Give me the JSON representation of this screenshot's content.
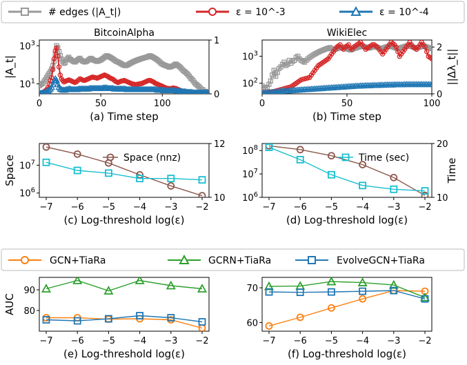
{
  "legend_top": [
    {
      "name": "# edges (|A_t|)",
      "color": "#999999",
      "marker": "square"
    },
    {
      "name": "ε = 10^-3",
      "color": "#d62728",
      "marker": "circle"
    },
    {
      "name": "ε = 10^-4",
      "color": "#1f77b4",
      "marker": "triangle"
    }
  ],
  "legend_bottom": [
    {
      "name": "GCN+TiaRa",
      "color": "#ff7f0e",
      "marker": "circle"
    },
    {
      "name": "GCRN+TiaRa",
      "color": "#2ca02c",
      "marker": "triangle"
    },
    {
      "name": "EvolveGCN+TiaRa",
      "color": "#1f77b4",
      "marker": "square"
    }
  ],
  "chart_data": [
    {
      "id": "a",
      "type": "line",
      "title": "BitcoinAlpha",
      "caption": "(a) Time step",
      "xlabel": "Time step",
      "ylabel": "|A_t|",
      "y_scale": "log",
      "ylim": [
        3,
        2000
      ],
      "xlim": [
        0,
        138
      ],
      "x_ticks": [
        0,
        50,
        100
      ],
      "y_ticks_left": [
        "10^1",
        "10^3"
      ],
      "y2lim": [
        0,
        1
      ],
      "y2_ticks": [
        "0",
        "1"
      ],
      "y2label": "",
      "series": [
        {
          "name": "# edges (|A_t|)",
          "axis": "left",
          "x_start": 0,
          "x_step": 1,
          "values": [
            8,
            9,
            10,
            11,
            14,
            17,
            22,
            28,
            35,
            45,
            60,
            90,
            150,
            350,
            1000,
            800,
            500,
            300,
            200,
            150,
            120,
            130,
            180,
            220,
            250,
            200,
            180,
            160,
            150,
            140,
            160,
            180,
            200,
            220,
            180,
            160,
            150,
            140,
            150,
            160,
            180,
            200,
            220,
            200,
            180,
            170,
            160,
            150,
            160,
            170,
            180,
            200,
            220,
            250,
            280,
            300,
            280,
            260,
            240,
            220,
            200,
            180,
            160,
            150,
            140,
            130,
            120,
            110,
            100,
            95,
            90,
            95,
            100,
            110,
            120,
            130,
            140,
            150,
            160,
            170,
            180,
            190,
            200,
            210,
            220,
            230,
            240,
            250,
            260,
            280,
            300,
            280,
            260,
            240,
            220,
            200,
            180,
            160,
            140,
            120,
            110,
            100,
            95,
            90,
            85,
            80,
            75,
            80,
            85,
            90,
            100,
            110,
            100,
            90,
            80,
            70,
            60,
            50,
            45,
            40,
            35,
            30,
            25,
            20,
            18,
            15,
            12,
            10,
            9,
            8,
            7,
            6,
            5,
            5,
            4,
            4,
            4,
            4
          ]
        },
        {
          "name": "ε = 10^-3",
          "axis": "right",
          "x_start": 0,
          "x_step": 1,
          "values": [
            0.01,
            0.015,
            0.02,
            0.03,
            0.04,
            0.06,
            0.08,
            0.12,
            0.18,
            0.25,
            0.3,
            0.45,
            0.65,
            0.8,
            0.85,
            0.7,
            0.5,
            0.35,
            0.28,
            0.25,
            0.22,
            0.23,
            0.24,
            0.25,
            0.26,
            0.25,
            0.24,
            0.23,
            0.22,
            0.21,
            0.22,
            0.24,
            0.26,
            0.28,
            0.27,
            0.26,
            0.25,
            0.25,
            0.26,
            0.27,
            0.28,
            0.29,
            0.3,
            0.31,
            0.31,
            0.3,
            0.3,
            0.29,
            0.3,
            0.31,
            0.32,
            0.33,
            0.34,
            0.35,
            0.34,
            0.33,
            0.32,
            0.3,
            0.29,
            0.28,
            0.27,
            0.25,
            0.23,
            0.22,
            0.21,
            0.22,
            0.23,
            0.24,
            0.24,
            0.25,
            0.24,
            0.23,
            0.22,
            0.21,
            0.2,
            0.19,
            0.18,
            0.18,
            0.17,
            0.17,
            0.18,
            0.18,
            0.19,
            0.19,
            0.2,
            0.21,
            0.22,
            0.23,
            0.24,
            0.25,
            0.25,
            0.24,
            0.23,
            0.22,
            0.2,
            0.19,
            0.18,
            0.17,
            0.16,
            0.15,
            0.14,
            0.13,
            0.12,
            0.11,
            0.1,
            0.1,
            0.09,
            0.1,
            0.1,
            0.11,
            0.1,
            0.1,
            0.09,
            0.08,
            0.07,
            0.06,
            0.05,
            0.05,
            0.04,
            0.04,
            0.04,
            0.03,
            0.03,
            0.03,
            0.02,
            0.02,
            0.02,
            0.02,
            0.02,
            0.02,
            0.02,
            0.02,
            0.02,
            0.02,
            0.02,
            0.02,
            0.02,
            0.02
          ]
        },
        {
          "name": "ε = 10^-4",
          "axis": "right",
          "x_start": 0,
          "x_step": 1,
          "values": [
            0.01,
            0.01,
            0.01,
            0.015,
            0.02,
            0.03,
            0.04,
            0.05,
            0.07,
            0.09,
            0.12,
            0.17,
            0.24,
            0.28,
            0.25,
            0.18,
            0.12,
            0.09,
            0.08,
            0.07,
            0.07,
            0.07,
            0.08,
            0.08,
            0.09,
            0.09,
            0.08,
            0.08,
            0.08,
            0.08,
            0.08,
            0.08,
            0.09,
            0.09,
            0.09,
            0.09,
            0.09,
            0.09,
            0.09,
            0.09,
            0.09,
            0.1,
            0.1,
            0.1,
            0.1,
            0.1,
            0.1,
            0.1,
            0.1,
            0.1,
            0.1,
            0.1,
            0.11,
            0.11,
            0.11,
            0.11,
            0.1,
            0.1,
            0.1,
            0.1,
            0.1,
            0.09,
            0.09,
            0.09,
            0.09,
            0.09,
            0.09,
            0.09,
            0.09,
            0.09,
            0.09,
            0.08,
            0.08,
            0.08,
            0.08,
            0.08,
            0.08,
            0.08,
            0.08,
            0.08,
            0.08,
            0.08,
            0.08,
            0.08,
            0.08,
            0.08,
            0.08,
            0.08,
            0.08,
            0.08,
            0.08,
            0.08,
            0.08,
            0.08,
            0.08,
            0.08,
            0.07,
            0.07,
            0.07,
            0.07,
            0.07,
            0.06,
            0.06,
            0.06,
            0.06,
            0.06,
            0.06,
            0.06,
            0.06,
            0.06,
            0.06,
            0.06,
            0.05,
            0.05,
            0.05,
            0.05,
            0.04,
            0.04,
            0.04,
            0.04,
            0.03,
            0.03,
            0.03,
            0.03,
            0.03,
            0.02,
            0.02,
            0.02,
            0.02,
            0.02,
            0.02,
            0.02,
            0.02,
            0.02,
            0.02,
            0.02,
            0.02,
            0.02
          ]
        }
      ]
    },
    {
      "id": "b",
      "type": "line",
      "title": "WikiElec",
      "caption": "(b) Time step",
      "xlabel": "Time step",
      "ylabel": "",
      "y_scale": "log",
      "ylim": [
        40,
        4000
      ],
      "xlim": [
        0,
        100
      ],
      "x_ticks": [
        0,
        50,
        100
      ],
      "y_ticks_left": [
        "10^2",
        "10^3"
      ],
      "y2lim": [
        0,
        2.3
      ],
      "y2_ticks": [
        "0",
        "2"
      ],
      "y2label": "||Δλ_t||",
      "series": [
        {
          "name": "# edges (|A_t|)",
          "axis": "left",
          "x_start": 0,
          "x_step": 1,
          "values": [
            80,
            70,
            65,
            70,
            90,
            120,
            200,
            300,
            180,
            250,
            350,
            400,
            500,
            600,
            450,
            500,
            700,
            550,
            650,
            700,
            900,
            1000,
            800,
            700,
            650,
            600,
            700,
            800,
            900,
            1000,
            1100,
            1200,
            1300,
            1400,
            1500,
            1600,
            1700,
            1800,
            1900,
            2000,
            2100,
            1900,
            1700,
            1800,
            1900,
            2000,
            2100,
            2200,
            2100,
            2000,
            1900,
            1800,
            1700,
            1800,
            1900,
            2000,
            2100,
            2200,
            2300,
            2400,
            2300,
            2200,
            2100,
            2000,
            2100,
            2200,
            2300,
            2200,
            2100,
            2000,
            1900,
            2000,
            2100,
            2200,
            2300,
            2400,
            2300,
            2200,
            2100,
            2000,
            1900,
            2000,
            2100,
            2200,
            2300,
            2400,
            2500,
            2400,
            2300,
            2200,
            2100,
            2000,
            2100,
            2200,
            2300,
            2400,
            2300,
            2200,
            2100,
            2000,
            1900
          ]
        },
        {
          "name": "ε = 10^-3",
          "axis": "right",
          "x_start": 0,
          "x_step": 1,
          "values": [
            0.05,
            0.05,
            0.05,
            0.06,
            0.07,
            0.08,
            0.09,
            0.1,
            0.12,
            0.14,
            0.16,
            0.18,
            0.2,
            0.22,
            0.24,
            0.26,
            0.28,
            0.3,
            0.35,
            0.4,
            0.45,
            0.5,
            0.55,
            0.6,
            0.62,
            0.64,
            0.66,
            0.68,
            0.7,
            0.8,
            0.9,
            1.0,
            1.1,
            1.2,
            1.25,
            1.3,
            1.35,
            1.4,
            1.45,
            1.5,
            1.6,
            1.7,
            1.8,
            1.9,
            2.0,
            2.05,
            2.1,
            1.95,
            1.9,
            2.0,
            2.05,
            2.1,
            1.95,
            1.9,
            2.0,
            2.05,
            2.1,
            2.15,
            2.2,
            2.1,
            2.0,
            1.9,
            1.95,
            2.0,
            2.05,
            2.1,
            2.1,
            2.05,
            2.0,
            1.9,
            1.8,
            1.7,
            1.8,
            1.9,
            2.0,
            2.1,
            2.2,
            2.15,
            2.1,
            2.0,
            1.8,
            1.6,
            1.7,
            1.8,
            1.9,
            2.0,
            2.1,
            2.2,
            2.1,
            2.0,
            1.95,
            1.9,
            2.0,
            2.1,
            2.2,
            2.1,
            2.0,
            1.8,
            1.6,
            1.55,
            1.5
          ]
        },
        {
          "name": "ε = 10^-4",
          "axis": "right",
          "x_start": 0,
          "x_step": 1,
          "values": [
            0.03,
            0.03,
            0.04,
            0.04,
            0.05,
            0.05,
            0.06,
            0.07,
            0.08,
            0.09,
            0.1,
            0.11,
            0.11,
            0.12,
            0.12,
            0.13,
            0.13,
            0.14,
            0.14,
            0.15,
            0.15,
            0.16,
            0.16,
            0.17,
            0.17,
            0.18,
            0.18,
            0.19,
            0.19,
            0.2,
            0.2,
            0.21,
            0.21,
            0.22,
            0.22,
            0.23,
            0.23,
            0.24,
            0.24,
            0.25,
            0.25,
            0.26,
            0.26,
            0.27,
            0.27,
            0.28,
            0.28,
            0.29,
            0.29,
            0.3,
            0.3,
            0.31,
            0.31,
            0.32,
            0.32,
            0.33,
            0.33,
            0.33,
            0.34,
            0.34,
            0.34,
            0.35,
            0.35,
            0.35,
            0.35,
            0.36,
            0.36,
            0.36,
            0.36,
            0.37,
            0.37,
            0.37,
            0.37,
            0.38,
            0.38,
            0.38,
            0.38,
            0.38,
            0.39,
            0.39,
            0.39,
            0.39,
            0.39,
            0.39,
            0.4,
            0.4,
            0.4,
            0.4,
            0.4,
            0.4,
            0.4,
            0.4,
            0.4,
            0.4,
            0.4,
            0.4,
            0.4,
            0.4,
            0.4,
            0.4,
            0.4
          ]
        }
      ]
    },
    {
      "id": "c",
      "type": "line",
      "caption": "(c) Log-threshold log(ε)",
      "xlabel": "Log-threshold log(ε)",
      "ylabel": "Space",
      "y_scale": "log",
      "ylim": [
        700000,
        60000000
      ],
      "x": [
        -7,
        -6,
        -5,
        -4,
        -3,
        -2
      ],
      "y_ticks_left": [
        "10^6",
        "10^7"
      ],
      "y2lim": [
        10,
        12
      ],
      "y2_ticks": [
        "10",
        "12"
      ],
      "y2label": "",
      "series": [
        {
          "name": "Space (nnz)",
          "axis": "left",
          "color": "#8c564b",
          "marker": "circle",
          "values": [
            45000000,
            25000000,
            12000000,
            4500000,
            1800000,
            800000
          ]
        },
        {
          "name": "time",
          "axis": "right",
          "color": "#17becf",
          "marker": "square",
          "values": [
            11.3,
            11.0,
            10.9,
            10.7,
            10.7,
            10.65
          ]
        }
      ]
    },
    {
      "id": "d",
      "type": "line",
      "caption": "(d) Log-threshold log(ε)",
      "xlabel": "Log-threshold log(ε)",
      "ylabel": "",
      "y_scale": "log",
      "ylim": [
        1000000,
        200000000
      ],
      "x": [
        -7,
        -6,
        -5,
        -4,
        -3,
        -2
      ],
      "y_ticks_left": [
        "10^6",
        "10^7",
        "10^8"
      ],
      "y2lim": [
        10,
        20
      ],
      "y2_ticks": [
        "10",
        "20"
      ],
      "y2label": "Time",
      "series": [
        {
          "name": "space",
          "axis": "left",
          "color": "#8c564b",
          "marker": "circle",
          "values": [
            160000000,
            110000000,
            60000000,
            25000000,
            7000000,
            1200000
          ]
        },
        {
          "name": "Time (sec)",
          "axis": "right",
          "color": "#17becf",
          "marker": "square",
          "values": [
            19.3,
            17.0,
            14.2,
            12.2,
            11.5,
            11.2
          ]
        }
      ]
    },
    {
      "id": "e",
      "type": "line",
      "caption": "(e) Log-threshold log(ε)",
      "xlabel": "Log-threshold log(ε)",
      "ylabel": "AUC",
      "ylim": [
        70,
        96
      ],
      "x": [
        -7,
        -6,
        -5,
        -4,
        -3,
        -2
      ],
      "y_ticks_left": [
        "80",
        "90"
      ],
      "series": [
        {
          "name": "GCN+TiaRa",
          "color": "#ff7f0e",
          "marker": "circle",
          "values": [
            76.5,
            76.5,
            75.8,
            76.0,
            75.5,
            71.5
          ]
        },
        {
          "name": "GCRN+TiaRa",
          "color": "#2ca02c",
          "marker": "triangle",
          "values": [
            90.5,
            94.5,
            89.5,
            94.5,
            92.0,
            90.5
          ]
        },
        {
          "name": "EvolveGCN+TiaRa",
          "color": "#1f77b4",
          "marker": "square",
          "values": [
            75.5,
            75.0,
            76.0,
            77.5,
            76.5,
            74.5
          ]
        }
      ]
    },
    {
      "id": "f",
      "type": "line",
      "caption": "(f) Log-threshold log(ε)",
      "xlabel": "Log-threshold log(ε)",
      "ylabel": "",
      "ylim": [
        57.5,
        73
      ],
      "x": [
        -7,
        -6,
        -5,
        -4,
        -3,
        -2
      ],
      "y_ticks_left": [
        "60",
        "70"
      ],
      "series": [
        {
          "name": "GCN+TiaRa",
          "color": "#ff7f0e",
          "marker": "circle",
          "values": [
            59.0,
            61.5,
            64.2,
            66.8,
            69.2,
            69.0
          ]
        },
        {
          "name": "GCRN+TiaRa",
          "color": "#2ca02c",
          "marker": "triangle",
          "values": [
            70.4,
            70.5,
            71.8,
            71.5,
            70.8,
            67.2
          ]
        },
        {
          "name": "EvolveGCN+TiaRa",
          "color": "#1f77b4",
          "marker": "square",
          "values": [
            68.8,
            68.7,
            68.8,
            69.0,
            69.2,
            66.8
          ]
        }
      ]
    }
  ]
}
